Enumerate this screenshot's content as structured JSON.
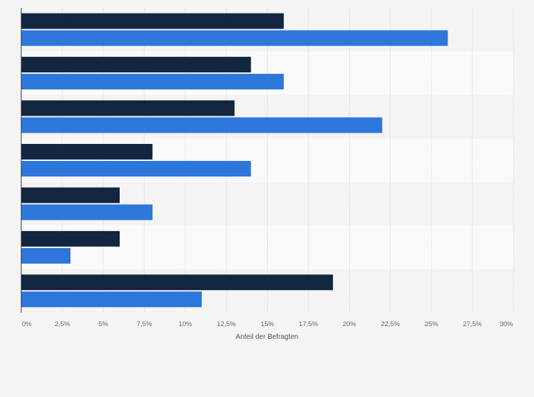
{
  "chart_data": {
    "type": "bar",
    "orientation": "horizontal",
    "title": "",
    "xlabel": "Anteil der Befragten",
    "ylabel": "",
    "categories": [
      "",
      "",
      "",
      "",
      "",
      "",
      ""
    ],
    "series": [
      {
        "color": "#13263f",
        "values": [
          16,
          14,
          13,
          8,
          6,
          6,
          19
        ]
      },
      {
        "color": "#2c76dc",
        "values": [
          26,
          16,
          22,
          14,
          8,
          3,
          11
        ]
      }
    ],
    "xlim": [
      0,
      30
    ],
    "xticks": [
      {
        "value": 0,
        "label": "0%"
      },
      {
        "value": 2.5,
        "label": "2,5%"
      },
      {
        "value": 5,
        "label": "5%"
      },
      {
        "value": 7.5,
        "label": "7,5%"
      },
      {
        "value": 10,
        "label": "10%"
      },
      {
        "value": 12.5,
        "label": "12,5%"
      },
      {
        "value": 15,
        "label": "15%"
      },
      {
        "value": 17.5,
        "label": "17,5%"
      },
      {
        "value": 20,
        "label": "20%"
      },
      {
        "value": 22.5,
        "label": "22,5%"
      },
      {
        "value": 25,
        "label": "25%"
      },
      {
        "value": 27.5,
        "label": "27,5%"
      },
      {
        "value": 30,
        "label": "30%"
      }
    ],
    "grid": true,
    "legend": "none"
  }
}
